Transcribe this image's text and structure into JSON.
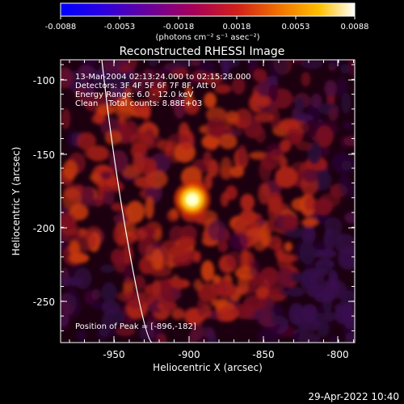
{
  "colorbar": {
    "ticks": [
      "-0.0088",
      "-0.0053",
      "-0.0018",
      "0.0018",
      "0.0053",
      "0.0088"
    ],
    "units": "(photons cm⁻² s⁻¹ asec⁻²)",
    "gradient_colors": [
      "#0000ff",
      "#2a00e0",
      "#6a009a",
      "#a5005a",
      "#d0201a",
      "#f07000",
      "#ffc000",
      "#ffffff"
    ]
  },
  "title": "Reconstructed RHESSI Image",
  "info": {
    "line1": "13-Mar-2004 02:13:24.000 to 02:15:28.000",
    "line2": "Detectors: 3F 4F 5F 6F 7F 8F, Att 0",
    "line3": "Energy Range: 6.0 - 12.0 keV",
    "line4": "Clean    Total counts: 8.88E+03"
  },
  "peak_label": "Position of Peak = [-896,-182]",
  "x_axis": {
    "label": "Heliocentric X (arcsec)",
    "ticks": [
      "-950",
      "-900",
      "-850",
      "-800"
    ]
  },
  "y_axis": {
    "label": "Heliocentric Y (arcsec)",
    "ticks": [
      "-100",
      "-150",
      "-200",
      "-250"
    ]
  },
  "footer_timestamp": "29-Apr-2022 10:40"
}
